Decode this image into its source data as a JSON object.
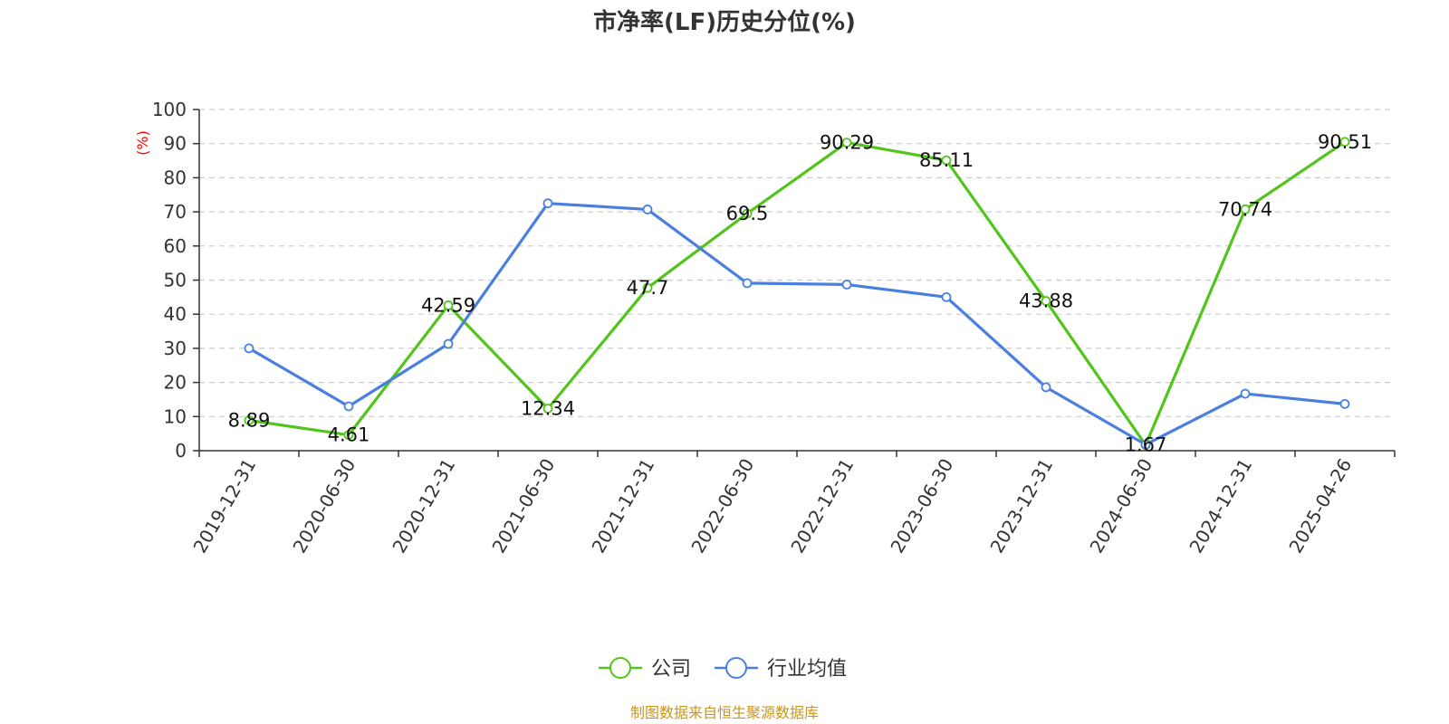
{
  "chart_data": {
    "type": "line",
    "title": "市净率(LF)历史分位(%)",
    "ylabel": "(%)",
    "ylim": [
      0,
      100
    ],
    "yticks": [
      "0",
      "10",
      "20",
      "30",
      "40",
      "50",
      "60",
      "70",
      "80",
      "90",
      "100"
    ],
    "grid": true,
    "categories": [
      "2019-12-31",
      "2020-06-30",
      "2020-12-31",
      "2021-06-30",
      "2021-12-31",
      "2022-06-30",
      "2022-12-31",
      "2023-06-30",
      "2023-12-31",
      "2024-06-30",
      "2024-12-31",
      "2025-04-26"
    ],
    "series": [
      {
        "name": "公司",
        "color": "#52c41a",
        "values": [
          8.89,
          4.61,
          42.59,
          12.34,
          47.7,
          69.5,
          90.29,
          85.11,
          43.88,
          1.67,
          70.74,
          90.51
        ],
        "labels": [
          "8.89",
          "4.61",
          "42.59",
          "12.34",
          "47.7",
          "69.5",
          "90.29",
          "85.11",
          "43.88",
          "1.67",
          "70.74",
          "90.51"
        ]
      },
      {
        "name": "行业均值",
        "color": "#4a7fe0",
        "values": [
          30,
          13,
          31.3,
          72.5,
          70.7,
          49.1,
          48.7,
          45,
          18.6,
          1.8,
          16.7,
          13.7
        ]
      }
    ],
    "legend_position": "bottom-center",
    "source": "制图数据来自恒生聚源数据库",
    "colors": {
      "axis": "#333333",
      "grid": "#cccccc",
      "unit_label": "#ff0000",
      "source": "#c8961e"
    }
  }
}
